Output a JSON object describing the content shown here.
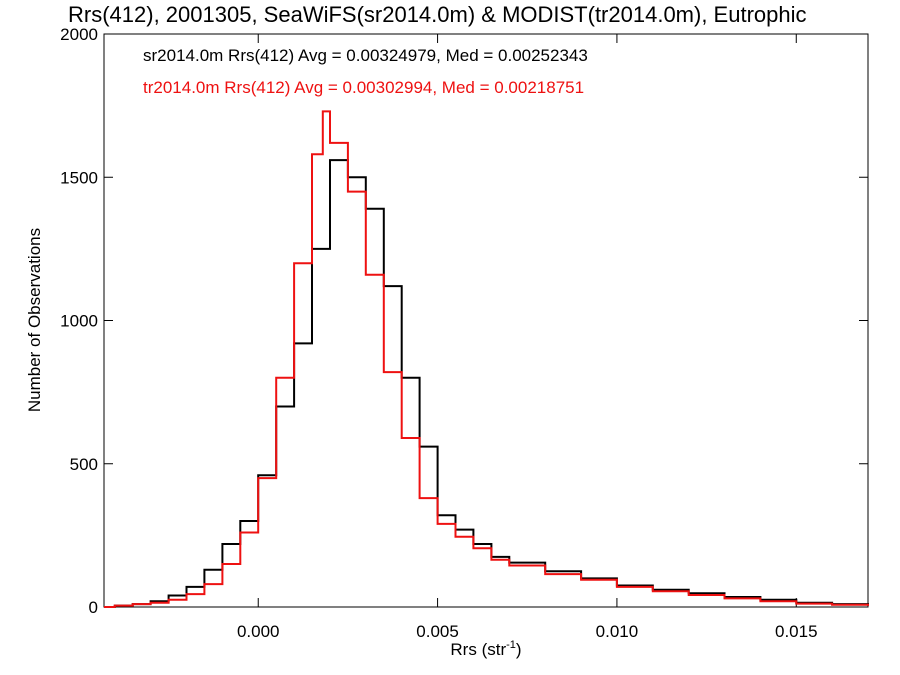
{
  "chart_data": {
    "type": "line",
    "title": "Rrs(412), 2001305, SeaWiFS(sr2014.0m) & MODIST(tr2014.0m), Eutrophic",
    "xlabel": "Rrs (str",
    "xlabel_sup": "-1",
    "xlabel_tail": ")",
    "ylabel": "Number of Observations",
    "xlim": [
      -0.0043,
      0.017
    ],
    "ylim": [
      0,
      2000
    ],
    "x_ticks": [
      0.0,
      0.005,
      0.01,
      0.015
    ],
    "x_tick_labels": [
      "0.000",
      "0.005",
      "0.010",
      "0.015"
    ],
    "y_ticks": [
      0,
      500,
      1000,
      1500,
      2000
    ],
    "y_tick_labels": [
      "0",
      "500",
      "1000",
      "1500",
      "2000"
    ],
    "legend_position": "top-left",
    "grid": false,
    "series": [
      {
        "name": "sr2014.0m Rrs(412) Avg = 0.00324979, Med = 0.00252343",
        "color": "#000000",
        "points": [
          [
            -0.0043,
            0
          ],
          [
            -0.004,
            5
          ],
          [
            -0.0035,
            10
          ],
          [
            -0.003,
            20
          ],
          [
            -0.0025,
            40
          ],
          [
            -0.002,
            70
          ],
          [
            -0.0015,
            130
          ],
          [
            -0.001,
            220
          ],
          [
            -0.0005,
            300
          ],
          [
            0.0,
            460
          ],
          [
            0.0005,
            700
          ],
          [
            0.001,
            920
          ],
          [
            0.0015,
            1250
          ],
          [
            0.002,
            1560
          ],
          [
            0.0025,
            1500
          ],
          [
            0.003,
            1390
          ],
          [
            0.0035,
            1120
          ],
          [
            0.004,
            800
          ],
          [
            0.0045,
            560
          ],
          [
            0.005,
            320
          ],
          [
            0.0055,
            270
          ],
          [
            0.006,
            220
          ],
          [
            0.0065,
            175
          ],
          [
            0.007,
            155
          ],
          [
            0.008,
            125
          ],
          [
            0.009,
            100
          ],
          [
            0.01,
            75
          ],
          [
            0.011,
            60
          ],
          [
            0.012,
            48
          ],
          [
            0.013,
            35
          ],
          [
            0.014,
            25
          ],
          [
            0.015,
            15
          ],
          [
            0.016,
            10
          ],
          [
            0.017,
            5
          ]
        ]
      },
      {
        "name": "tr2014.0m Rrs(412) Avg = 0.00302994, Med = 0.00218751",
        "color": "#ee1111",
        "points": [
          [
            -0.0043,
            0
          ],
          [
            -0.004,
            5
          ],
          [
            -0.0035,
            10
          ],
          [
            -0.003,
            15
          ],
          [
            -0.0025,
            25
          ],
          [
            -0.002,
            45
          ],
          [
            -0.0015,
            80
          ],
          [
            -0.001,
            150
          ],
          [
            -0.0005,
            260
          ],
          [
            0.0,
            450
          ],
          [
            0.0005,
            800
          ],
          [
            0.001,
            1200
          ],
          [
            0.0015,
            1580
          ],
          [
            0.0018,
            1730
          ],
          [
            0.002,
            1620
          ],
          [
            0.0025,
            1450
          ],
          [
            0.003,
            1160
          ],
          [
            0.0035,
            820
          ],
          [
            0.004,
            590
          ],
          [
            0.0045,
            380
          ],
          [
            0.005,
            290
          ],
          [
            0.0055,
            245
          ],
          [
            0.006,
            205
          ],
          [
            0.0065,
            165
          ],
          [
            0.007,
            145
          ],
          [
            0.008,
            115
          ],
          [
            0.009,
            95
          ],
          [
            0.01,
            70
          ],
          [
            0.011,
            55
          ],
          [
            0.012,
            42
          ],
          [
            0.013,
            30
          ],
          [
            0.014,
            20
          ],
          [
            0.015,
            12
          ],
          [
            0.016,
            8
          ],
          [
            0.017,
            4
          ]
        ]
      }
    ]
  }
}
